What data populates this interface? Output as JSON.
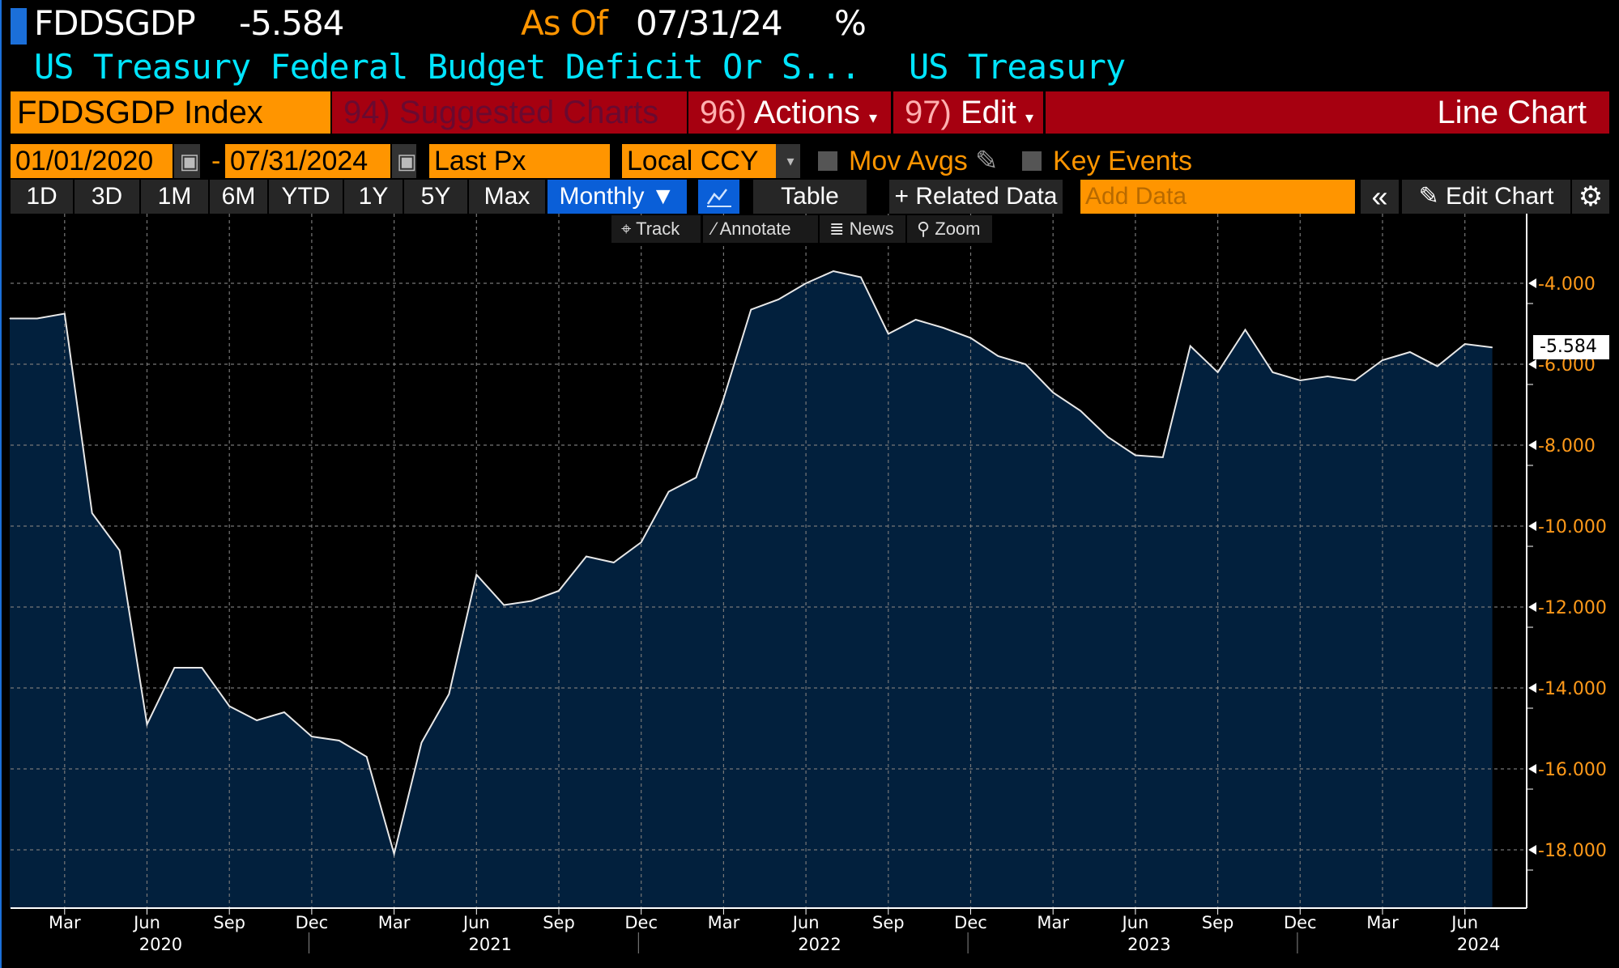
{
  "header": {
    "ticker": "FDDSGDP",
    "last_value": "-5.584",
    "as_of_label": "As Of",
    "as_of_date": "07/31/24",
    "unit": "%",
    "description": "US Treasury Federal Budget Deficit Or S...",
    "source": "US Treasury"
  },
  "menu": {
    "security": "FDDSGDP Index",
    "suggested": "94) Suggested Charts",
    "actions_num": "96)",
    "actions": "Actions",
    "edit_num": "97)",
    "edit": "Edit",
    "chart_type": "Line Chart"
  },
  "controls": {
    "start_date": "01/01/2020",
    "separator": "-",
    "end_date": "07/31/2024",
    "field": "Last Px",
    "currency": "Local CCY",
    "mov_avgs": "Mov Avgs",
    "key_events": "Key Events"
  },
  "toolbar": {
    "ranges": [
      "1D",
      "3D",
      "1M",
      "6M",
      "YTD",
      "1Y",
      "5Y",
      "Max"
    ],
    "frequency": "Monthly ▼",
    "table": "Table",
    "related": "+ Related Data",
    "add_data_placeholder": "Add Data",
    "collapse": "«",
    "edit_chart": "Edit Chart"
  },
  "tools": {
    "track": "Track",
    "annotate": "Annotate",
    "news": "News",
    "zoom": "Zoom"
  },
  "colors": {
    "accent_orange": "#ff9500",
    "menu_red": "#a60010",
    "area_fill": "#02203d",
    "title_cyan": "#00e5ff",
    "active_blue": "#0a5fd8"
  },
  "chart_data": {
    "type": "area",
    "x": [
      "2020-01",
      "2020-02",
      "2020-03",
      "2020-04",
      "2020-05",
      "2020-06",
      "2020-07",
      "2020-08",
      "2020-09",
      "2020-10",
      "2020-11",
      "2020-12",
      "2021-01",
      "2021-02",
      "2021-03",
      "2021-04",
      "2021-05",
      "2021-06",
      "2021-07",
      "2021-08",
      "2021-09",
      "2021-10",
      "2021-11",
      "2021-12",
      "2022-01",
      "2022-02",
      "2022-03",
      "2022-04",
      "2022-05",
      "2022-06",
      "2022-07",
      "2022-08",
      "2022-09",
      "2022-10",
      "2022-11",
      "2022-12",
      "2023-01",
      "2023-02",
      "2023-03",
      "2023-04",
      "2023-05",
      "2023-06",
      "2023-07",
      "2023-08",
      "2023-09",
      "2023-10",
      "2023-11",
      "2023-12",
      "2024-01",
      "2024-02",
      "2024-03",
      "2024-04",
      "2024-05",
      "2024-06",
      "2024-07"
    ],
    "values": [
      -4.87,
      -4.87,
      -4.75,
      -9.68,
      -10.6,
      -14.9,
      -13.5,
      -13.5,
      -14.45,
      -14.8,
      -14.6,
      -15.2,
      -15.3,
      -15.7,
      -18.1,
      -15.35,
      -14.15,
      -11.2,
      -11.95,
      -11.85,
      -11.6,
      -10.75,
      -10.9,
      -10.4,
      -9.15,
      -8.8,
      -6.85,
      -4.65,
      -4.4,
      -4.0,
      -3.7,
      -3.85,
      -5.25,
      -4.9,
      -5.1,
      -5.35,
      -5.8,
      -6.0,
      -6.7,
      -7.15,
      -7.8,
      -8.25,
      -8.3,
      -5.55,
      -6.2,
      -5.15,
      -6.2,
      -6.4,
      -6.3,
      -6.4,
      -5.9,
      -5.7,
      -6.05,
      -5.5,
      -5.584
    ],
    "last_label": "-5.584",
    "yticks": [
      "-4.000",
      "-6.000",
      "-8.000",
      "-10.000",
      "-12.000",
      "-14.000",
      "-16.000",
      "-18.000"
    ],
    "ylim": [
      -19.5,
      -2.5
    ],
    "xtick_months": [
      "Mar",
      "Jun",
      "Sep",
      "Dec"
    ],
    "xtick_labels": [
      "Mar",
      "Jun",
      "Sep",
      "Dec",
      "Mar",
      "Jun",
      "Sep",
      "Dec",
      "Mar",
      "Jun",
      "Sep",
      "Dec",
      "Mar",
      "Jun",
      "Sep",
      "Dec",
      "Mar",
      "Jun"
    ],
    "years": [
      "2020",
      "2021",
      "2022",
      "2023",
      "2024"
    ],
    "grid": true,
    "axis_side": "right"
  }
}
